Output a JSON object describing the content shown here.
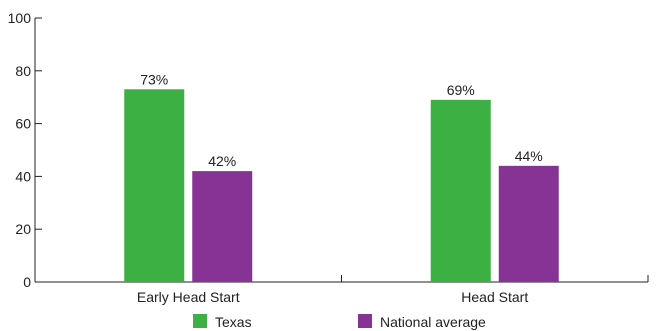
{
  "chart_data": {
    "type": "bar",
    "categories": [
      "Early Head Start",
      "Head Start"
    ],
    "series": [
      {
        "name": "Texas",
        "color": "#3cb043",
        "values": [
          73,
          69
        ],
        "labels": [
          "73%",
          "69%"
        ]
      },
      {
        "name": "National average",
        "color": "#873395",
        "values": [
          42,
          44
        ],
        "labels": [
          "42%",
          "44%"
        ]
      }
    ],
    "ylim": [
      0,
      100
    ],
    "yticks": [
      0,
      20,
      40,
      60,
      80,
      100
    ],
    "grid": false,
    "legend_position": "bottom-center"
  }
}
